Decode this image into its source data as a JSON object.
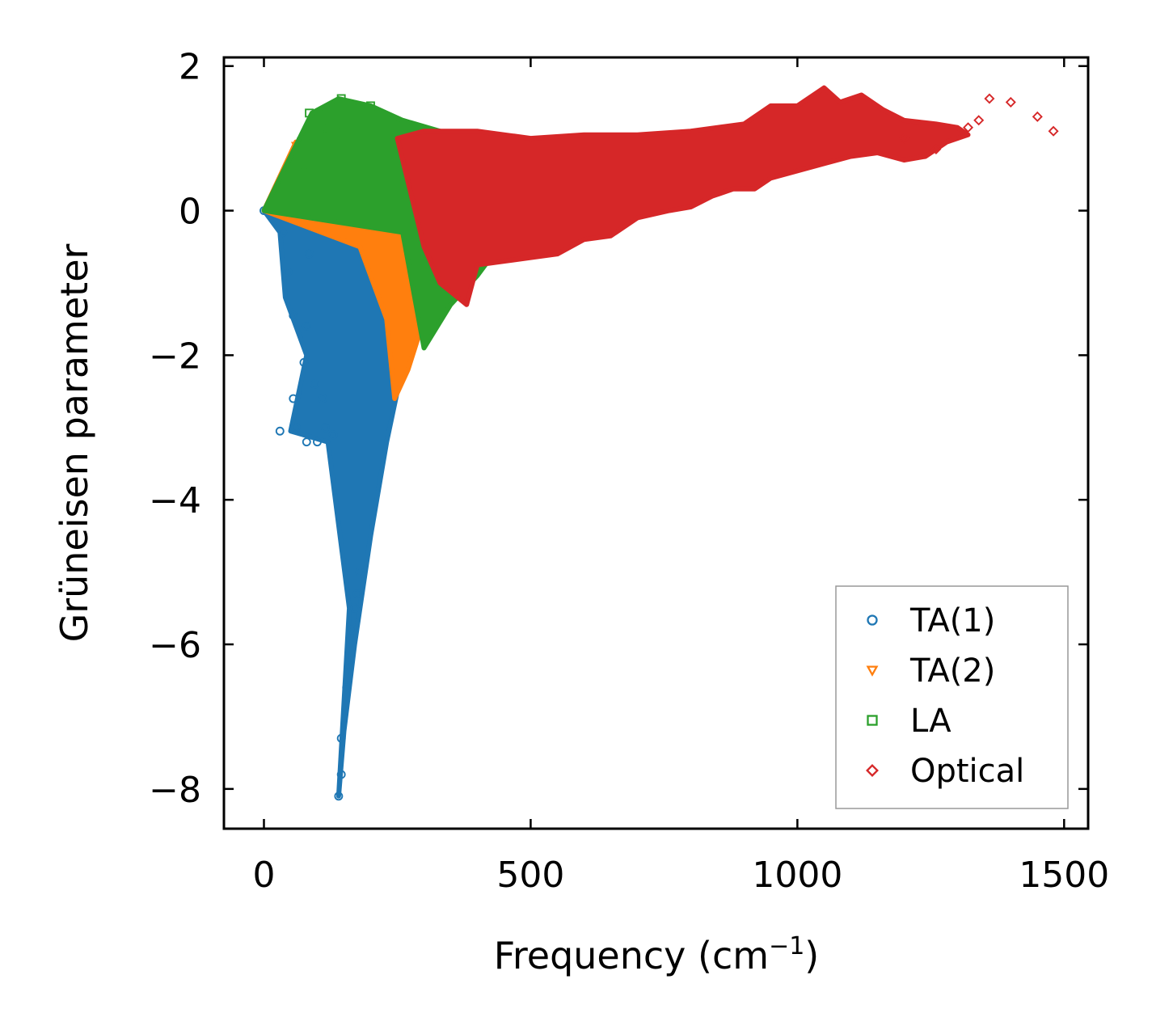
{
  "chart_data": {
    "type": "scatter",
    "title": "",
    "xlabel": "Frequency (cm",
    "xlabel_sup": "−1",
    "xlabel_close": ")",
    "ylabel": "Grüneisen parameter",
    "xlim": [
      -75,
      1545
    ],
    "ylim": [
      -8.55,
      2.12
    ],
    "xticks": [
      0,
      500,
      1000,
      1500
    ],
    "xtick_labels": [
      "0",
      "500",
      "1000",
      "1500"
    ],
    "yticks": [
      -8,
      -6,
      -4,
      -2,
      0,
      2
    ],
    "ytick_labels": [
      "−8",
      "−6",
      "−4",
      "−2",
      "0",
      "2"
    ],
    "grid": false,
    "legend_position": "lower-right",
    "series": [
      {
        "name": "TA(1)",
        "marker": "circle",
        "color": "#1f77b4",
        "envelope": [
          [
            0,
            0.0
          ],
          [
            100,
            0.9
          ],
          [
            200,
            0.85
          ],
          [
            250,
            0.65
          ],
          [
            300,
            0.4
          ],
          [
            350,
            0.05
          ],
          [
            300,
            -0.8
          ],
          [
            270,
            -1.6
          ],
          [
            250,
            -2.5
          ],
          [
            230,
            -3.2
          ],
          [
            200,
            -4.5
          ],
          [
            170,
            -6.0
          ],
          [
            150,
            -7.2
          ],
          [
            140,
            -8.1
          ],
          [
            160,
            -5.5
          ],
          [
            120,
            -3.2
          ],
          [
            50,
            -3.05
          ],
          [
            80,
            -2.0
          ],
          [
            40,
            -1.2
          ],
          [
            30,
            -0.3
          ]
        ],
        "points": [
          [
            0,
            0.0
          ],
          [
            140,
            -8.1
          ],
          [
            145,
            -7.8
          ],
          [
            145,
            -7.3
          ],
          [
            155,
            -6.6
          ],
          [
            160,
            -6.3
          ],
          [
            165,
            -5.8
          ],
          [
            170,
            -5.5
          ],
          [
            175,
            -5.3
          ],
          [
            180,
            -5.0
          ],
          [
            30,
            -3.05
          ],
          [
            60,
            -3.0
          ],
          [
            80,
            -3.2
          ],
          [
            100,
            -3.2
          ],
          [
            115,
            -3.0
          ],
          [
            130,
            -3.1
          ],
          [
            55,
            -2.6
          ],
          [
            75,
            -2.1
          ],
          [
            95,
            -2.4
          ],
          [
            110,
            -2.6
          ],
          [
            45,
            -0.85
          ],
          [
            55,
            -1.45
          ],
          [
            80,
            -1.6
          ],
          [
            35,
            -0.3
          ],
          [
            40,
            0.5
          ],
          [
            90,
            1.15
          ],
          [
            120,
            0.55
          ],
          [
            140,
            0.3
          ],
          [
            100,
            0.1
          ],
          [
            85,
            -0.6
          ],
          [
            160,
            1.0
          ],
          [
            180,
            0.75
          ],
          [
            130,
            0.9
          ]
        ]
      },
      {
        "name": "TA(2)",
        "marker": "triangle",
        "color": "#ff7f0e",
        "envelope": [
          [
            0,
            0.0
          ],
          [
            60,
            0.95
          ],
          [
            150,
            1.0
          ],
          [
            250,
            0.9
          ],
          [
            330,
            0.7
          ],
          [
            370,
            0.45
          ],
          [
            390,
            0.1
          ],
          [
            370,
            -0.4
          ],
          [
            330,
            -0.9
          ],
          [
            300,
            -1.5
          ],
          [
            270,
            -2.2
          ],
          [
            245,
            -2.6
          ],
          [
            230,
            -1.5
          ],
          [
            180,
            -0.5
          ]
        ],
        "points": [
          [
            60,
            0.9
          ],
          [
            90,
            0.5
          ],
          [
            100,
            0.85
          ],
          [
            115,
            0.95
          ],
          [
            60,
            0.55
          ],
          [
            50,
            0.2
          ],
          [
            90,
            0.15
          ],
          [
            140,
            0.75
          ],
          [
            130,
            0.6
          ]
        ]
      },
      {
        "name": "LA",
        "marker": "square",
        "color": "#2ca02c",
        "envelope": [
          [
            0,
            0.0
          ],
          [
            90,
            1.35
          ],
          [
            140,
            1.55
          ],
          [
            200,
            1.45
          ],
          [
            260,
            1.25
          ],
          [
            330,
            1.1
          ],
          [
            380,
            0.85
          ],
          [
            430,
            0.65
          ],
          [
            460,
            0.4
          ],
          [
            460,
            0.0
          ],
          [
            440,
            -0.5
          ],
          [
            400,
            -0.9
          ],
          [
            350,
            -1.3
          ],
          [
            300,
            -1.9
          ],
          [
            280,
            -1.1
          ],
          [
            260,
            -0.3
          ]
        ],
        "points": [
          [
            85,
            1.35
          ],
          [
            145,
            1.55
          ],
          [
            180,
            1.4
          ],
          [
            200,
            1.45
          ],
          [
            110,
            1.15
          ],
          [
            120,
            1.05
          ],
          [
            70,
            0.95
          ],
          [
            90,
            0.95
          ],
          [
            75,
            0.62
          ],
          [
            150,
            1.2
          ],
          [
            170,
            1.25
          ]
        ]
      },
      {
        "name": "Optical",
        "marker": "diamond",
        "color": "#d62728",
        "envelope": [
          [
            250,
            1.0
          ],
          [
            300,
            1.1
          ],
          [
            400,
            1.1
          ],
          [
            500,
            1.0
          ],
          [
            600,
            1.05
          ],
          [
            700,
            1.05
          ],
          [
            800,
            1.1
          ],
          [
            900,
            1.2
          ],
          [
            950,
            1.45
          ],
          [
            1000,
            1.45
          ],
          [
            1050,
            1.7
          ],
          [
            1080,
            1.5
          ],
          [
            1120,
            1.6
          ],
          [
            1160,
            1.4
          ],
          [
            1200,
            1.25
          ],
          [
            1260,
            1.2
          ],
          [
            1300,
            1.15
          ],
          [
            1320,
            1.05
          ],
          [
            1280,
            0.95
          ],
          [
            1240,
            0.75
          ],
          [
            1200,
            0.7
          ],
          [
            1150,
            0.8
          ],
          [
            1100,
            0.75
          ],
          [
            1050,
            0.65
          ],
          [
            1000,
            0.55
          ],
          [
            950,
            0.45
          ],
          [
            920,
            0.3
          ],
          [
            880,
            0.3
          ],
          [
            840,
            0.2
          ],
          [
            800,
            0.05
          ],
          [
            760,
            0.0
          ],
          [
            700,
            -0.1
          ],
          [
            650,
            -0.35
          ],
          [
            600,
            -0.4
          ],
          [
            550,
            -0.6
          ],
          [
            500,
            -0.65
          ],
          [
            450,
            -0.7
          ],
          [
            400,
            -0.75
          ],
          [
            380,
            -1.3
          ],
          [
            330,
            -1.0
          ],
          [
            300,
            -0.5
          ]
        ],
        "points": [
          [
            1360,
            1.55
          ],
          [
            1400,
            1.5
          ],
          [
            1450,
            1.3
          ],
          [
            1480,
            1.1
          ],
          [
            1340,
            1.25
          ],
          [
            1320,
            1.15
          ],
          [
            1200,
            1.0
          ],
          [
            1260,
            0.85
          ]
        ]
      }
    ]
  }
}
